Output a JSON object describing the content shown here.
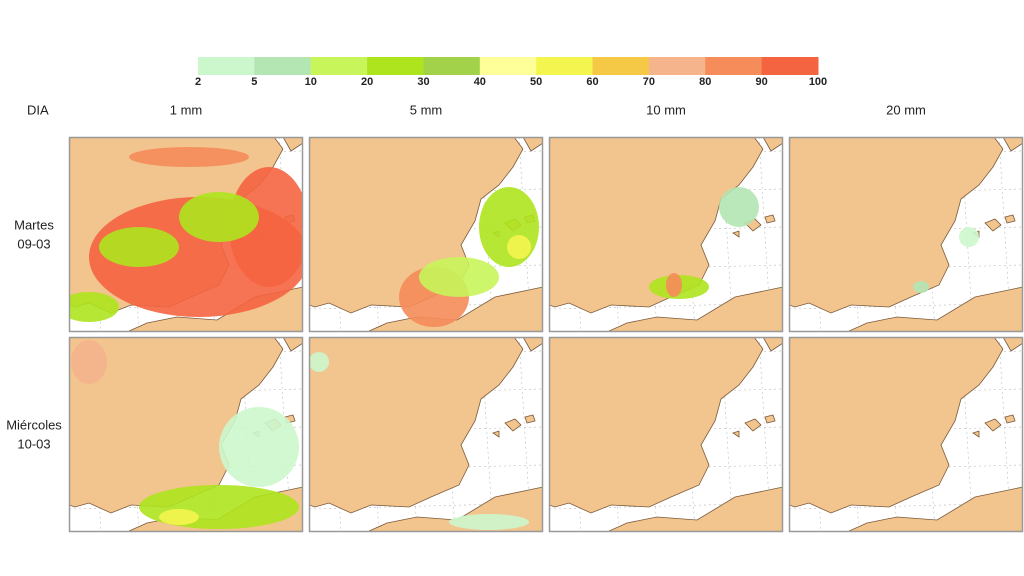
{
  "header": {
    "corner": "DIA",
    "columns": [
      "1 mm",
      "5 mm",
      "10 mm",
      "20 mm"
    ]
  },
  "rows": [
    {
      "label": [
        "Martes",
        "09-03"
      ]
    },
    {
      "label": [
        "Miércoles",
        "10-03"
      ]
    }
  ],
  "legend": {
    "ticks": [
      2,
      5,
      10,
      20,
      30,
      40,
      50,
      60,
      70,
      80,
      90,
      100
    ],
    "colors": [
      "#ccf7cc",
      "#b4e6b4",
      "#c8f55a",
      "#aee41e",
      "#a2d24a",
      "#ffff9a",
      "#f5f550",
      "#f5c846",
      "#f5b48c",
      "#f58c5a",
      "#f56440"
    ]
  }
}
